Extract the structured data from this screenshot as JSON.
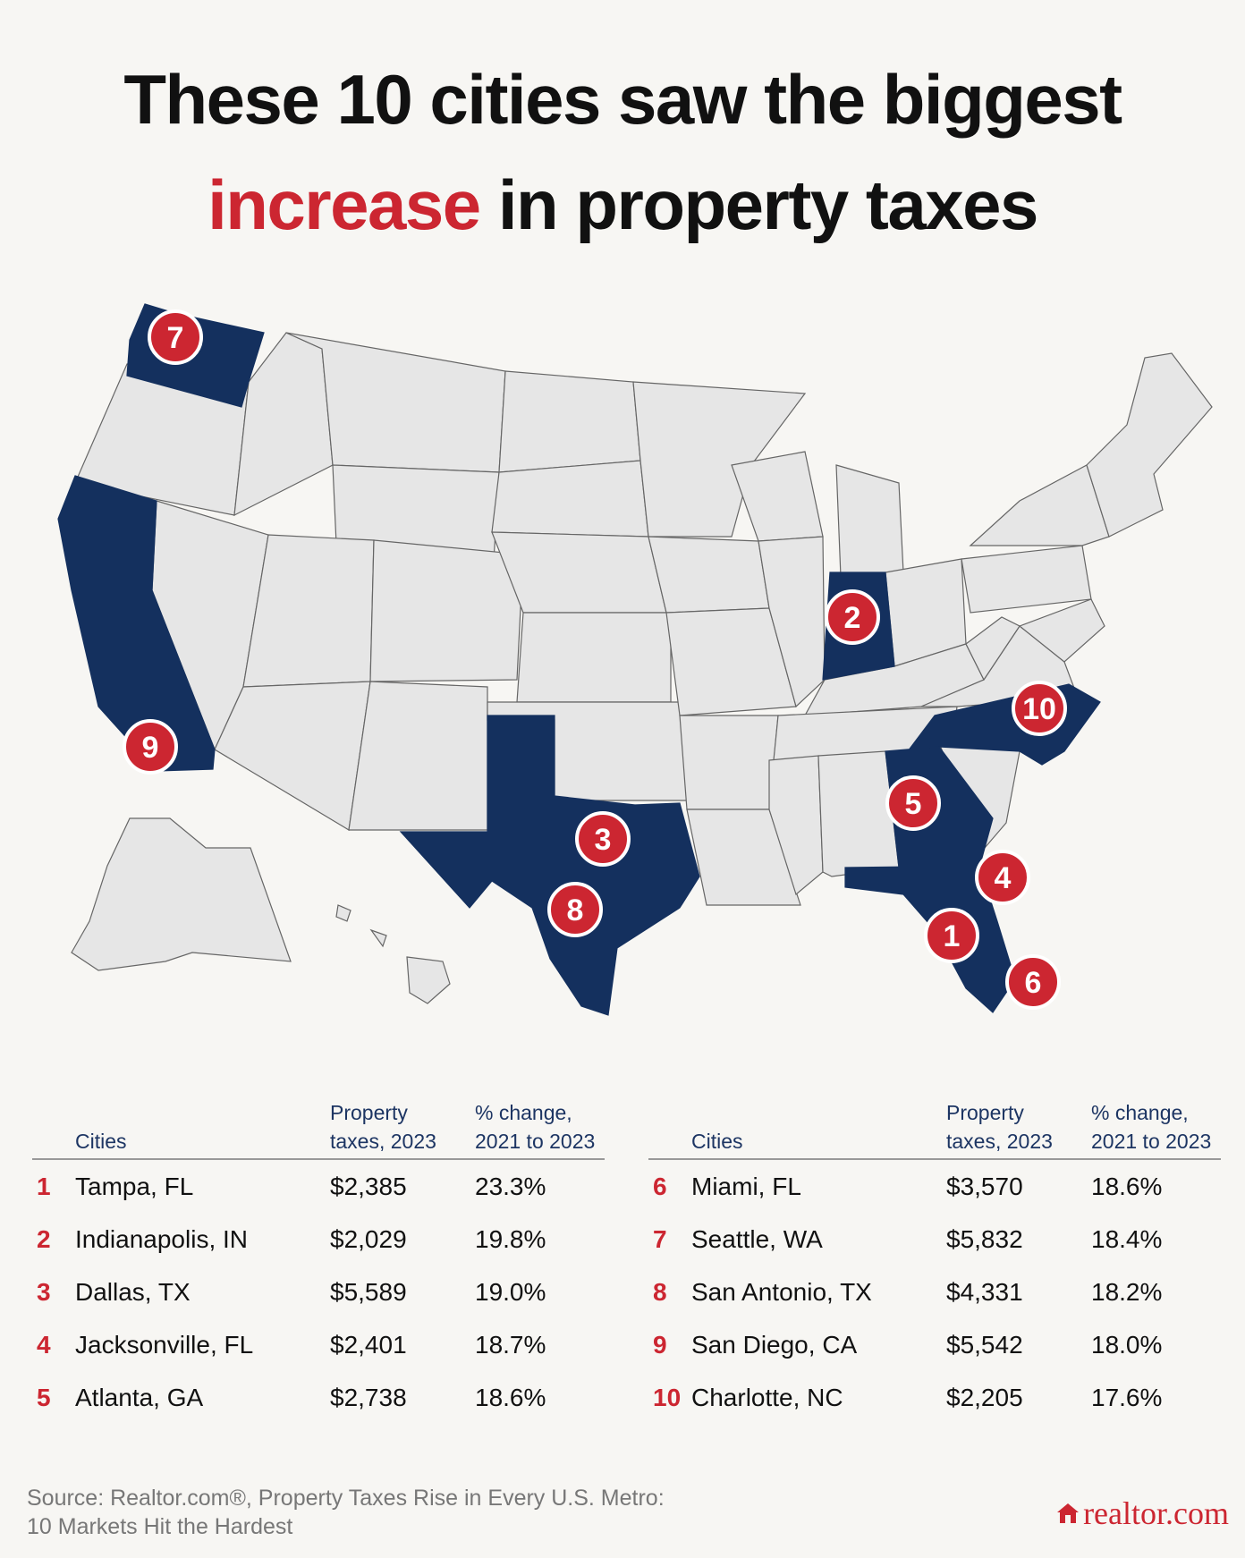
{
  "title": {
    "line1": "These 10 cities saw the biggest",
    "line2_accent": "increase",
    "line2_rest": " in property taxes"
  },
  "colors": {
    "accent": "#cc2631",
    "highlight_state": "#14305e",
    "base_state": "#e6e6e6",
    "background": "#f7f6f3"
  },
  "map": {
    "highlighted_states": [
      "WA",
      "CA",
      "TX",
      "IN",
      "NC",
      "GA",
      "FL"
    ],
    "markers": [
      "7",
      "2",
      "10",
      "9",
      "5",
      "3",
      "4",
      "8",
      "1",
      "6"
    ]
  },
  "table": {
    "headers": {
      "city": "Cities",
      "tax_line1": "Property",
      "tax_line2": "taxes, 2023",
      "pct_line1": "% change,",
      "pct_line2": "2021 to 2023"
    },
    "left": [
      {
        "rank": "1",
        "city": "Tampa, FL",
        "tax": "$2,385",
        "pct": "23.3%"
      },
      {
        "rank": "2",
        "city": "Indianapolis, IN",
        "tax": "$2,029",
        "pct": "19.8%"
      },
      {
        "rank": "3",
        "city": "Dallas, TX",
        "tax": "$5,589",
        "pct": "19.0%"
      },
      {
        "rank": "4",
        "city": "Jacksonville, FL",
        "tax": "$2,401",
        "pct": "18.7%"
      },
      {
        "rank": "5",
        "city": "Atlanta, GA",
        "tax": "$2,738",
        "pct": "18.6%"
      }
    ],
    "right": [
      {
        "rank": "6",
        "city": "Miami, FL",
        "tax": "$3,570",
        "pct": "18.6%"
      },
      {
        "rank": "7",
        "city": "Seattle, WA",
        "tax": "$5,832",
        "pct": "18.4%"
      },
      {
        "rank": "8",
        "city": "San Antonio, TX",
        "tax": "$4,331",
        "pct": "18.2%"
      },
      {
        "rank": "9",
        "city": "San Diego, CA",
        "tax": "$5,542",
        "pct": "18.0%"
      },
      {
        "rank": "10",
        "city": "Charlotte, NC",
        "tax": "$2,205",
        "pct": "17.6%"
      }
    ]
  },
  "source": {
    "line1": "Source: Realtor.com®, Property Taxes Rise in Every U.S. Metro:",
    "line2": "10 Markets Hit the Hardest"
  },
  "logo": {
    "text": "realtor.com",
    "icon": "house-icon"
  }
}
